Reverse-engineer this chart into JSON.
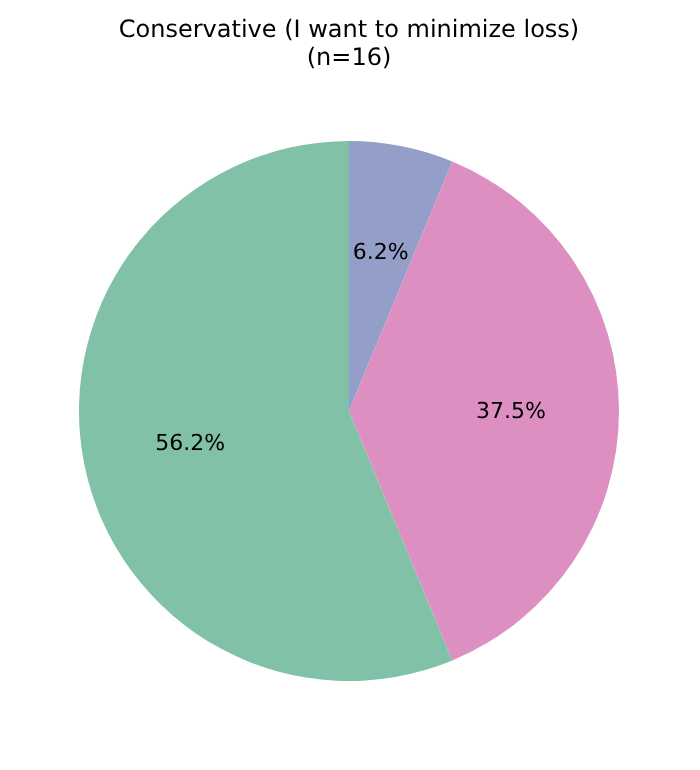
{
  "chart_data": {
    "type": "pie",
    "title": "Conservative (I want to minimize loss)",
    "subtitle": "(n=16)",
    "categories": [
      null,
      null,
      null
    ],
    "values": [
      6.25,
      37.5,
      56.25
    ],
    "value_labels": [
      "6.2%",
      "37.5%",
      "56.2%"
    ],
    "colors": [
      "#949fc9",
      "#dc8fc0",
      "#80c1a8"
    ]
  }
}
